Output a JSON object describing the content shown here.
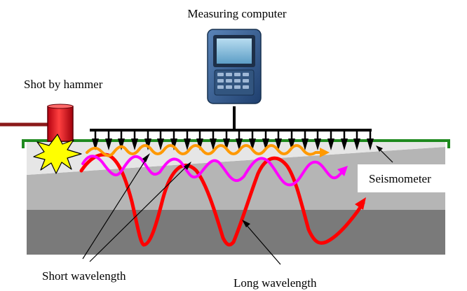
{
  "labels": {
    "measuring_computer": "Measuring computer",
    "shot_by_hammer": "Shot by hammer",
    "seismometer": "Seismometer",
    "short_wavelength": "Short wavelength",
    "long_wavelength": "Long wavelength"
  },
  "icons": {
    "computer": "handheld-computer-icon",
    "hammer": "hammer-icon",
    "impact": "impact-burst-icon",
    "sensor": "geophone-icon"
  },
  "colors": {
    "ground_surface": "#1f8a1f",
    "layer_top": "#e6e6e6",
    "layer_middle": "#b5b5b5",
    "layer_bottom": "#7a7a7a",
    "cable": "#000000",
    "hammer": "#e0101a",
    "hammer_handle": "#8b1a1a",
    "impact_burst": "#ffff00",
    "wave_short": "#ff9900",
    "wave_medium": "#ff00ff",
    "wave_long": "#ff0000"
  }
}
